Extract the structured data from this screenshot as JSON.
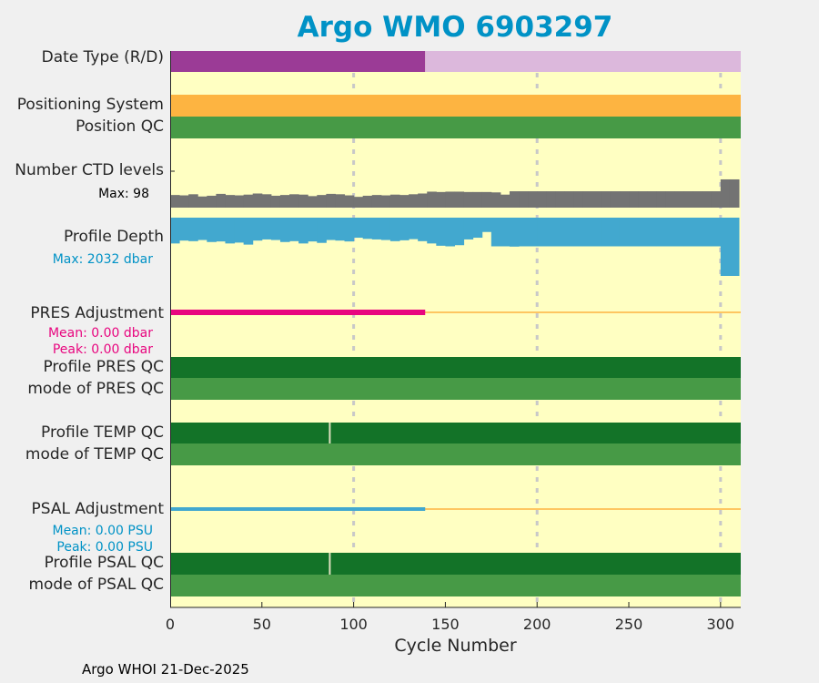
{
  "title": "Argo WMO 6903297",
  "footer": "Argo WHOI 21-Dec-2025",
  "labels": {
    "date_type": "Date Type (R/D)",
    "positioning": "Positioning System",
    "position_qc": "Position QC",
    "ctd": "Number CTD levels",
    "ctd_max": "Max: 98",
    "depth": "Profile Depth",
    "depth_max": "Max: 2032 dbar",
    "pres_adj": "PRES Adjustment",
    "pres_mean": "Mean: 0.00 dbar",
    "pres_peak": "Peak: 0.00 dbar",
    "pres_qc": "Profile PRES QC",
    "pres_mode": "mode of PRES QC",
    "temp_qc": "Profile TEMP QC",
    "temp_mode": "mode of TEMP QC",
    "psal_adj": "PSAL Adjustment",
    "psal_mean": "Mean: 0.00 PSU",
    "psal_peak": "Peak: 0.00 PSU",
    "psal_qc": "Profile PSAL QC",
    "psal_mode": "mode of PSAL QC"
  },
  "colors": {
    "bg": "#ffffc2",
    "delayed": "#9b3b96",
    "realtime": "#dcb8dc",
    "positioning": "#fdb441",
    "qc_light": "#479a46",
    "qc_dark": "#137328",
    "ctd": "#737373",
    "depth": "#42a8cf",
    "pres_adj": "#e8067f",
    "psal_adj": "#42a8cf",
    "adj_none": "#fdb441",
    "title": "#0092c6"
  },
  "chart_data": {
    "type": "bar",
    "xlabel": "Cycle Number",
    "xlim": [
      0,
      311
    ],
    "xticks": [
      "0",
      "50",
      "100",
      "150",
      "200",
      "250",
      "300"
    ],
    "grid_x": [
      100,
      200,
      300
    ],
    "delayed_mode_until_cycle": 139,
    "adjusted_until_cycle": 139,
    "qc_flag_cycle": 87,
    "block_size": 5,
    "ctd_levels_max": 98,
    "ctd_levels": [
      34,
      33,
      36,
      30,
      32,
      37,
      34,
      33,
      35,
      38,
      36,
      32,
      34,
      36,
      35,
      31,
      34,
      37,
      36,
      33,
      29,
      32,
      34,
      33,
      35,
      34,
      36,
      38,
      43,
      42,
      43,
      43,
      42,
      42,
      42,
      41,
      35,
      44,
      44,
      44,
      44,
      44,
      44,
      44,
      44,
      44,
      44,
      44,
      44,
      44,
      44,
      44,
      44,
      44,
      44,
      44,
      44,
      44,
      44,
      44,
      76,
      76
    ],
    "profile_depth_max": 2032,
    "profile_depth": [
      900,
      800,
      820,
      780,
      850,
      830,
      900,
      870,
      940,
      800,
      760,
      780,
      850,
      820,
      900,
      830,
      880,
      780,
      800,
      830,
      700,
      740,
      760,
      780,
      820,
      790,
      750,
      820,
      900,
      980,
      1000,
      960,
      760,
      700,
      500,
      1000,
      1000,
      1010,
      1000,
      1000,
      1000,
      1000,
      1000,
      1000,
      1000,
      1000,
      1000,
      1000,
      1000,
      1000,
      1000,
      1000,
      1000,
      1000,
      1000,
      1000,
      1000,
      1000,
      1000,
      1000,
      2032,
      2032
    ]
  }
}
